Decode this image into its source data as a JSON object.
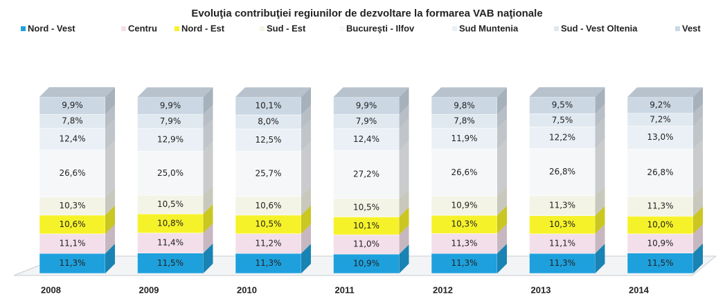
{
  "chart_data": {
    "type": "stacked_bar_3d",
    "title": "Evoluţia contribuţiei regiunilor de dezvoltare la formarea VAB naţionale",
    "categories": [
      "2008",
      "2009",
      "2010",
      "2011",
      "2012",
      "2013",
      "2014"
    ],
    "ylim": [
      0,
      100
    ],
    "series": [
      {
        "name": "Nord - Vest",
        "color": "#1ea0dc",
        "values": [
          11.3,
          11.5,
          11.3,
          10.9,
          11.3,
          11.3,
          11.5
        ],
        "value_labels": [
          "11,3%",
          "11,5%",
          "11,3%",
          "10,9%",
          "11,3%",
          "11,3%",
          "11,5%"
        ]
      },
      {
        "name": "Centru",
        "color": "#f3dfea",
        "values": [
          11.1,
          11.4,
          11.2,
          11.0,
          11.3,
          11.1,
          10.9
        ],
        "value_labels": [
          "11,1%",
          "11,4%",
          "11,2%",
          "11,0%",
          "11,3%",
          "11,1%",
          "10,9%"
        ]
      },
      {
        "name": "Nord - Est",
        "color": "#f6f22a",
        "values": [
          10.6,
          10.8,
          10.5,
          10.1,
          10.3,
          10.3,
          10.0
        ],
        "value_labels": [
          "10,6%",
          "10,8%",
          "10,5%",
          "10,1%",
          "10,3%",
          "10,3%",
          "10,0%"
        ]
      },
      {
        "name": "Sud - Est",
        "color": "#f4f4e6",
        "values": [
          10.3,
          10.5,
          10.6,
          10.5,
          10.9,
          11.3,
          11.3
        ],
        "value_labels": [
          "10,3%",
          "10,5%",
          "10,6%",
          "10,5%",
          "10,9%",
          "11,3%",
          "11,3%"
        ]
      },
      {
        "name": "Bucureşti - Ilfov",
        "color": "#f5f7f9",
        "values": [
          26.6,
          25.0,
          25.7,
          27.2,
          26.6,
          26.8,
          26.8
        ],
        "value_labels": [
          "26,6%",
          "25,0%",
          "25,7%",
          "27,2%",
          "26,6%",
          "26,8%",
          "26,8%"
        ]
      },
      {
        "name": "Sud Muntenia",
        "color": "#eaf0f5",
        "values": [
          12.4,
          12.9,
          12.5,
          12.4,
          11.9,
          12.2,
          13.0
        ],
        "value_labels": [
          "12,4%",
          "12,9%",
          "12,5%",
          "12,4%",
          "11,9%",
          "12,2%",
          "13,0%"
        ]
      },
      {
        "name": "Sud - Vest Oltenia",
        "color": "#e0e8f0",
        "values": [
          7.8,
          7.9,
          8.0,
          7.9,
          7.8,
          7.5,
          7.2
        ],
        "value_labels": [
          "7,8%",
          "7,9%",
          "8,0%",
          "7,9%",
          "7,8%",
          "7,5%",
          "7,2%"
        ]
      },
      {
        "name": "Vest",
        "color": "#cbd8e4",
        "values": [
          9.9,
          9.9,
          10.1,
          9.9,
          9.8,
          9.5,
          9.2
        ],
        "value_labels": [
          "9,9%",
          "9,9%",
          "10,1%",
          "9,9%",
          "9,8%",
          "9,5%",
          "9,2%"
        ]
      }
    ]
  }
}
